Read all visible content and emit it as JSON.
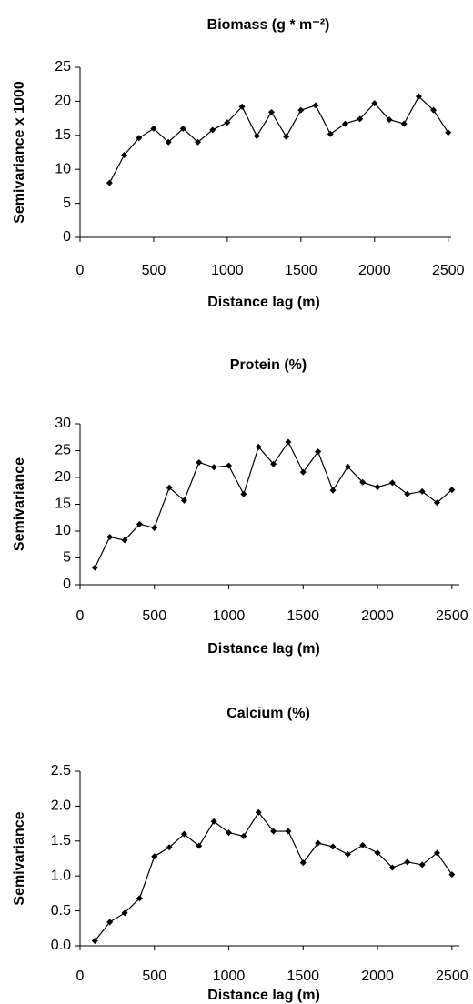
{
  "chart_data": [
    {
      "type": "line",
      "title": "Biomass (g * m⁻²)",
      "xlabel": "Distance lag (m)",
      "ylabel": "Semivariance x 1000",
      "x": [
        200,
        300,
        400,
        500,
        600,
        700,
        800,
        900,
        1000,
        1100,
        1200,
        1300,
        1400,
        1500,
        1600,
        1700,
        1800,
        1900,
        2000,
        2100,
        2200,
        2300,
        2400,
        2500
      ],
      "series": [
        {
          "color": "#000000",
          "values": [
            8,
            12.1,
            14.6,
            16,
            14,
            16,
            14,
            15.8,
            16.9,
            19.2,
            14.9,
            18.4,
            14.8,
            18.7,
            19.4,
            15.2,
            16.7,
            17.4,
            19.7,
            17.3,
            16.7,
            20.7,
            18.7,
            15.4
          ]
        }
      ],
      "xlim": [
        0,
        2520
      ],
      "xticks": [
        0,
        500,
        1000,
        1500,
        2000,
        2500
      ],
      "ylim": [
        0,
        25
      ],
      "yticks": [
        0,
        5,
        10,
        15,
        20,
        25
      ]
    },
    {
      "type": "line",
      "title": "Protein (%)",
      "xlabel": "Distance lag (m)",
      "ylabel": "Semivariance",
      "x": [
        100,
        200,
        300,
        400,
        500,
        600,
        700,
        800,
        900,
        1000,
        1100,
        1200,
        1300,
        1400,
        1500,
        1600,
        1700,
        1800,
        1900,
        2000,
        2100,
        2200,
        2300,
        2400,
        2500
      ],
      "series": [
        {
          "color": "#000000",
          "values": [
            3.2,
            8.9,
            8.3,
            11.3,
            10.6,
            18.1,
            15.7,
            22.8,
            21.9,
            22.2,
            16.9,
            25.7,
            22.5,
            26.6,
            21,
            24.8,
            17.6,
            22,
            19.1,
            18.2,
            19,
            16.9,
            17.4,
            15.3,
            17.7
          ]
        }
      ],
      "xlim": [
        0,
        2550
      ],
      "xticks": [
        0,
        500,
        1000,
        1500,
        2000,
        2500
      ],
      "ylim": [
        0,
        30
      ],
      "yticks": [
        0,
        5,
        10,
        15,
        20,
        25,
        30
      ]
    },
    {
      "type": "line",
      "title": "Calcium (%)",
      "xlabel": "Distance lag (m)",
      "ylabel": "Semivariance",
      "x": [
        100,
        200,
        300,
        400,
        500,
        600,
        700,
        800,
        900,
        1000,
        1100,
        1200,
        1300,
        1400,
        1500,
        1600,
        1700,
        1800,
        1900,
        2000,
        2100,
        2200,
        2300,
        2400,
        2500
      ],
      "series": [
        {
          "color": "#000000",
          "values": [
            0.07,
            0.34,
            0.47,
            0.68,
            1.28,
            1.41,
            1.6,
            1.43,
            1.78,
            1.62,
            1.57,
            1.91,
            1.64,
            1.64,
            1.19,
            1.47,
            1.42,
            1.31,
            1.44,
            1.33,
            1.12,
            1.2,
            1.16,
            1.33,
            1.02
          ]
        }
      ],
      "xlim": [
        0,
        2550
      ],
      "xticks": [
        0,
        500,
        1000,
        1500,
        2000,
        2500
      ],
      "ylim": [
        0,
        2.5
      ],
      "yticks": [
        {
          "value": 0,
          "label": "0.0"
        },
        0.5,
        {
          "value": 1,
          "label": "1.0"
        },
        1.5,
        {
          "value": 2,
          "label": "2.0"
        },
        2.5
      ]
    }
  ]
}
